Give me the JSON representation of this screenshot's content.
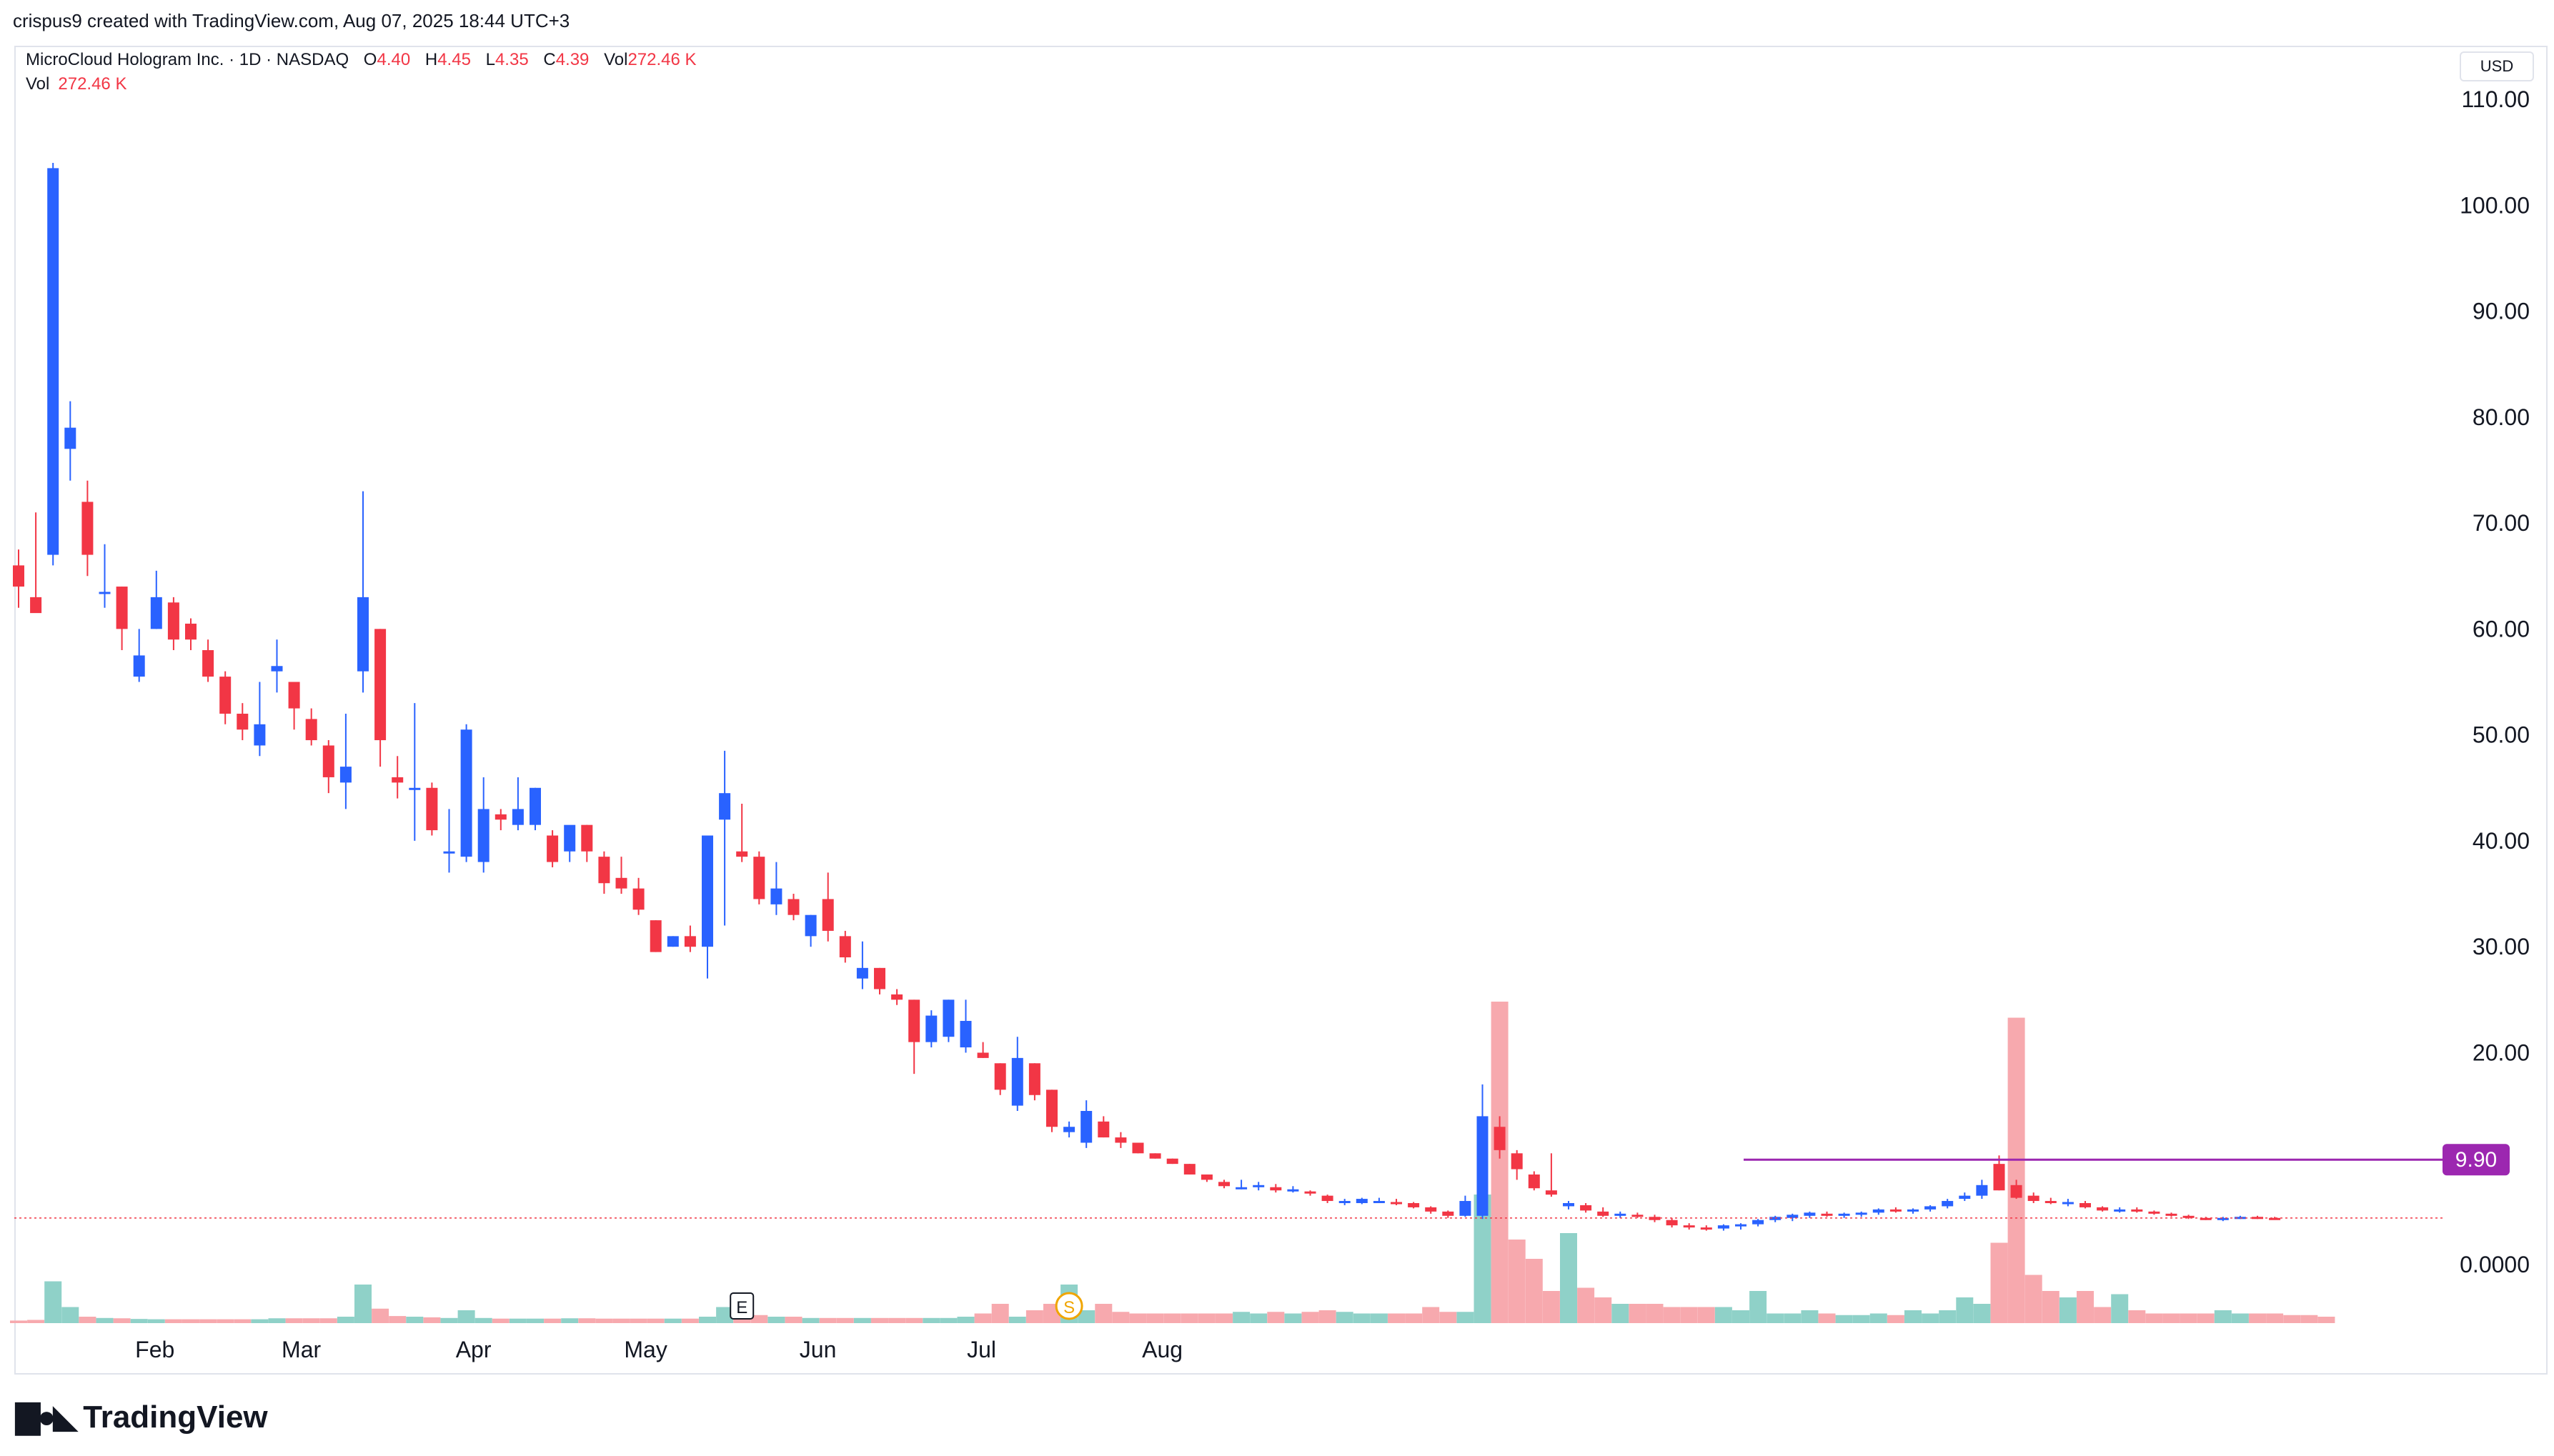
{
  "header": {
    "credit": "crispus9 created with TradingView.com, Aug 07, 2025 18:44 UTC+3"
  },
  "legend": {
    "symbol": "MicroCloud Hologram Inc. · 1D · NASDAQ",
    "open_label": "O",
    "open": "4.40",
    "high_label": "H",
    "high": "4.45",
    "low_label": "L",
    "low": "4.35",
    "close_label": "C",
    "close": "4.39",
    "vol_label": "Vol",
    "vol": "272.46 K"
  },
  "axis": {
    "currency": "USD"
  },
  "brand": {
    "name": "TradingView"
  },
  "colors": {
    "up": "#2962ff",
    "down": "#f23645",
    "vol_up": "#8fd1c8",
    "vol_down": "#f7a9ae",
    "hline": "#9c27b0"
  },
  "chart_data": {
    "type": "candlestick",
    "y_ticks": [
      "110.00",
      "100.00",
      "90.00",
      "80.00",
      "70.00",
      "60.00",
      "50.00",
      "40.00",
      "30.00",
      "20.00",
      "0.0000"
    ],
    "x_ticks": [
      "Feb",
      "Mar",
      "Apr",
      "May",
      "Jun",
      "Jul",
      "Aug"
    ],
    "horizontal_line": {
      "value": 9.9,
      "label": "9.90"
    },
    "last_price": 4.39,
    "markers": [
      {
        "label": "E",
        "x": 42
      },
      {
        "label": "S",
        "x": 61
      }
    ],
    "candles": [
      [
        66,
        67.5,
        62,
        64
      ],
      [
        63,
        71,
        62,
        61.5
      ],
      [
        67,
        104,
        66,
        103.5
      ],
      [
        77,
        81.5,
        74,
        79
      ],
      [
        72,
        74,
        65,
        67
      ],
      [
        63.5,
        68,
        62,
        63.5
      ],
      [
        64,
        64,
        58,
        60
      ],
      [
        55.5,
        60,
        55,
        57.5
      ],
      [
        60,
        65.5,
        60,
        63
      ],
      [
        62.5,
        63,
        58,
        59
      ],
      [
        60.5,
        61,
        58,
        59
      ],
      [
        58,
        59,
        55,
        55.5
      ],
      [
        55.5,
        56,
        51,
        52
      ],
      [
        52,
        53,
        49.5,
        50.5
      ],
      [
        49,
        55,
        48,
        51
      ],
      [
        56,
        59,
        54,
        56.5
      ],
      [
        55,
        55,
        50.5,
        52.5
      ],
      [
        51.5,
        52.5,
        49,
        49.5
      ],
      [
        49,
        49.5,
        44.5,
        46
      ],
      [
        45.5,
        52,
        43,
        47
      ],
      [
        56,
        73,
        54,
        63
      ],
      [
        60,
        60,
        47,
        49.5
      ],
      [
        46,
        48,
        44,
        45.5
      ],
      [
        45,
        53,
        40,
        45
      ],
      [
        45,
        45.5,
        40.5,
        41
      ],
      [
        39,
        43,
        37,
        39
      ],
      [
        38.5,
        51,
        38,
        50.5
      ],
      [
        38,
        46,
        37,
        43
      ],
      [
        42.5,
        43,
        41,
        42
      ],
      [
        41.5,
        46,
        41,
        43
      ],
      [
        41.5,
        45,
        41,
        45
      ],
      [
        40.5,
        41,
        37.5,
        38
      ],
      [
        39,
        41,
        38,
        41.5
      ],
      [
        41.5,
        41.5,
        38,
        39
      ],
      [
        38.5,
        39,
        35,
        36
      ],
      [
        36.5,
        38.5,
        35,
        35.5
      ],
      [
        35.5,
        36.5,
        33,
        33.5
      ],
      [
        32.5,
        32.5,
        29.5,
        29.5
      ],
      [
        30,
        31,
        30,
        31
      ],
      [
        31,
        32,
        29.5,
        30
      ],
      [
        30,
        40.5,
        27,
        40.5
      ],
      [
        42,
        48.5,
        32,
        44.5
      ],
      [
        39,
        43.5,
        38,
        38.5
      ],
      [
        38.5,
        39,
        34,
        34.5
      ],
      [
        34,
        38,
        33,
        35.5
      ],
      [
        34.5,
        35,
        32.5,
        33
      ],
      [
        31,
        33,
        30,
        33
      ],
      [
        34.5,
        37,
        30.5,
        31.5
      ],
      [
        31,
        31.5,
        28.5,
        29
      ],
      [
        27,
        30.5,
        26,
        28
      ],
      [
        28,
        28,
        25.5,
        26
      ],
      [
        25.5,
        26,
        24.5,
        25
      ],
      [
        25,
        25,
        18,
        21
      ],
      [
        21,
        24,
        20.5,
        23.5
      ],
      [
        21.5,
        25,
        21,
        25
      ],
      [
        20.5,
        25,
        20,
        23
      ],
      [
        20,
        21,
        19.5,
        19.5
      ],
      [
        19,
        19,
        16,
        16.5
      ],
      [
        15,
        21.5,
        14.5,
        19.5
      ],
      [
        19,
        19,
        15.5,
        16
      ],
      [
        16.5,
        16.5,
        12.5,
        13
      ],
      [
        12.5,
        13.5,
        12,
        13
      ],
      [
        11.5,
        15.5,
        11,
        14.5
      ],
      [
        13.5,
        14,
        12,
        12
      ],
      [
        12,
        12.5,
        11,
        11.5
      ],
      [
        11.5,
        11.5,
        10.5,
        10.5
      ],
      [
        10.5,
        10.5,
        10,
        10
      ],
      [
        10,
        10,
        9.5,
        9.5
      ],
      [
        9.5,
        9.5,
        8.5,
        8.5
      ],
      [
        8.5,
        8.5,
        7.8,
        8
      ],
      [
        7.8,
        8,
        7.2,
        7.4
      ],
      [
        7.3,
        8,
        7.1,
        7.3
      ],
      [
        7.3,
        7.8,
        7,
        7.5
      ],
      [
        7.3,
        7.6,
        6.8,
        7
      ],
      [
        7,
        7.4,
        6.8,
        7.1
      ],
      [
        6.9,
        7,
        6.5,
        6.7
      ],
      [
        6.5,
        6.6,
        5.8,
        6
      ],
      [
        5.8,
        6.2,
        5.6,
        6
      ],
      [
        5.8,
        6.3,
        5.7,
        6.2
      ],
      [
        6,
        6.3,
        5.8,
        6
      ],
      [
        5.9,
        6.2,
        5.6,
        5.8
      ],
      [
        5.8,
        5.9,
        5.3,
        5.4
      ],
      [
        5.4,
        5.5,
        4.8,
        5
      ],
      [
        5,
        5.1,
        4.4,
        4.6
      ],
      [
        4.6,
        6.5,
        4.5,
        6
      ],
      [
        4.6,
        17,
        4.3,
        14
      ],
      [
        13,
        14,
        10,
        10.8
      ],
      [
        10.5,
        10.8,
        8,
        9
      ],
      [
        8.5,
        8.8,
        7,
        7.2
      ],
      [
        7,
        10.5,
        6.4,
        6.6
      ],
      [
        5.5,
        6,
        5.2,
        5.8
      ],
      [
        5.6,
        5.8,
        4.9,
        5.1
      ],
      [
        5,
        5.4,
        4.5,
        4.6
      ],
      [
        4.6,
        5,
        4.4,
        4.8
      ],
      [
        4.7,
        4.9,
        4.4,
        4.5
      ],
      [
        4.5,
        4.7,
        4,
        4.2
      ],
      [
        4.2,
        4.4,
        3.5,
        3.7
      ],
      [
        3.7,
        3.9,
        3.3,
        3.5
      ],
      [
        3.5,
        3.7,
        3.2,
        3.4
      ],
      [
        3.4,
        3.8,
        3.2,
        3.7
      ],
      [
        3.6,
        3.9,
        3.3,
        3.8
      ],
      [
        3.8,
        4.3,
        3.6,
        4.2
      ],
      [
        4.2,
        4.6,
        4,
        4.5
      ],
      [
        4.4,
        4.8,
        4.1,
        4.7
      ],
      [
        4.6,
        5,
        4.4,
        4.9
      ],
      [
        4.8,
        5,
        4.5,
        4.7
      ],
      [
        4.7,
        4.9,
        4.4,
        4.8
      ],
      [
        4.8,
        5,
        4.5,
        4.9
      ],
      [
        4.9,
        5.3,
        4.7,
        5.2
      ],
      [
        5.2,
        5.4,
        4.9,
        5
      ],
      [
        5,
        5.3,
        4.8,
        5.2
      ],
      [
        5.2,
        5.6,
        5,
        5.5
      ],
      [
        5.5,
        6.2,
        5.3,
        6
      ],
      [
        6.2,
        6.8,
        6,
        6.5
      ],
      [
        6.5,
        8,
        6.2,
        7.5
      ],
      [
        9.5,
        10.3,
        7,
        7
      ],
      [
        7.5,
        8,
        6.2,
        6.3
      ],
      [
        6.5,
        6.8,
        5.8,
        6
      ],
      [
        6,
        6.3,
        5.7,
        5.8
      ],
      [
        5.8,
        6.2,
        5.5,
        5.9
      ],
      [
        5.8,
        6,
        5.3,
        5.4
      ],
      [
        5.4,
        5.5,
        5,
        5.1
      ],
      [
        5.1,
        5.4,
        4.9,
        5.2
      ],
      [
        5.2,
        5.4,
        4.9,
        5
      ],
      [
        5,
        5.1,
        4.7,
        4.8
      ],
      [
        4.8,
        4.9,
        4.5,
        4.6
      ],
      [
        4.6,
        4.7,
        4.3,
        4.4
      ],
      [
        4.4,
        4.5,
        4.2,
        4.3
      ],
      [
        4.3,
        4.5,
        4.1,
        4.4
      ],
      [
        4.4,
        4.6,
        4.3,
        4.5
      ],
      [
        4.5,
        4.6,
        4.3,
        4.4
      ],
      [
        4.4,
        4.5,
        4.35,
        4.39
      ]
    ],
    "volume": [
      0.8,
      1.0,
      13,
      5,
      2,
      1.6,
      1.5,
      1.3,
      1.2,
      1.2,
      1.2,
      1.2,
      1.2,
      1.2,
      1.2,
      1.5,
      1.5,
      1.5,
      1.5,
      2,
      12,
      4.5,
      2.2,
      2,
      1.8,
      1.6,
      4,
      1.6,
      1.4,
      1.4,
      1.4,
      1.4,
      1.5,
      1.5,
      1.4,
      1.4,
      1.4,
      1.4,
      1.4,
      1.4,
      2,
      5,
      3,
      2.5,
      2,
      2,
      1.6,
      1.6,
      1.6,
      1.6,
      1.6,
      1.6,
      1.6,
      1.6,
      1.6,
      2,
      3,
      6,
      2,
      4,
      6,
      12,
      4,
      6,
      3.5,
      3,
      3,
      3,
      3,
      3,
      3,
      3.5,
      3,
      3.5,
      3,
      3.5,
      4,
      3.5,
      3,
      3,
      3,
      3,
      5,
      3.5,
      3.5,
      40,
      100,
      26,
      20,
      10,
      28,
      11,
      8,
      6,
      6,
      6,
      5,
      5,
      5,
      5,
      4,
      10,
      3,
      3,
      4,
      3,
      2.5,
      2.5,
      3,
      2.5,
      4,
      3,
      4,
      8,
      6,
      25,
      95,
      15,
      10,
      8,
      10,
      5,
      9,
      4,
      3,
      3,
      3,
      3,
      4,
      3,
      3,
      3,
      2.5,
      2.5,
      2
    ]
  }
}
